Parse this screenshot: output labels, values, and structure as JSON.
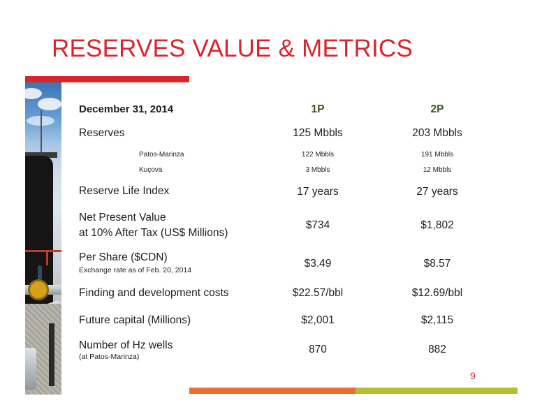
{
  "slide": {
    "title": "RESERVES VALUE & METRICS",
    "page_number": "9",
    "colors": {
      "title_red": "#d8262b",
      "bar_orange": "#ec6e2e",
      "bar_green": "#b5be2f",
      "header_green": "#3e5618"
    }
  },
  "table": {
    "date_header": "December 31, 2014",
    "col1_header": "1P",
    "col2_header": "2P",
    "reserves": {
      "label": "Reserves",
      "p1": "125 Mbbls",
      "p2": "203 Mbbls"
    },
    "patos": {
      "label": "Patos-Marinza",
      "p1": "122 Mbbls",
      "p2": "191 Mbbls"
    },
    "kucova": {
      "label": "Kuçova",
      "p1": "3 Mbbls",
      "p2": "12 Mbbls"
    },
    "rli": {
      "label": "Reserve Life Index",
      "p1": "17 years",
      "p2": "27 years"
    },
    "npv": {
      "label_line1": "Net Present Value",
      "label_line2": "at 10% After Tax (US$ Millions)",
      "p1": "$734",
      "p2": "$1,802"
    },
    "per_share": {
      "label": "Per Share ($CDN)",
      "note": "Exchange rate as of Feb. 20, 2014",
      "p1": "$3.49",
      "p2": "$8.57"
    },
    "fd_costs": {
      "label": "Finding and development costs",
      "p1": "$22.57/bbl",
      "p2": "$12.69/bbl"
    },
    "future_capital": {
      "label": "Future capital (Millions)",
      "p1": "$2,001",
      "p2": "$2,115"
    },
    "hz_wells": {
      "label": "Number of Hz wells",
      "note": "(at Patos-Marinza)",
      "p1": "870",
      "p2": "882"
    }
  }
}
